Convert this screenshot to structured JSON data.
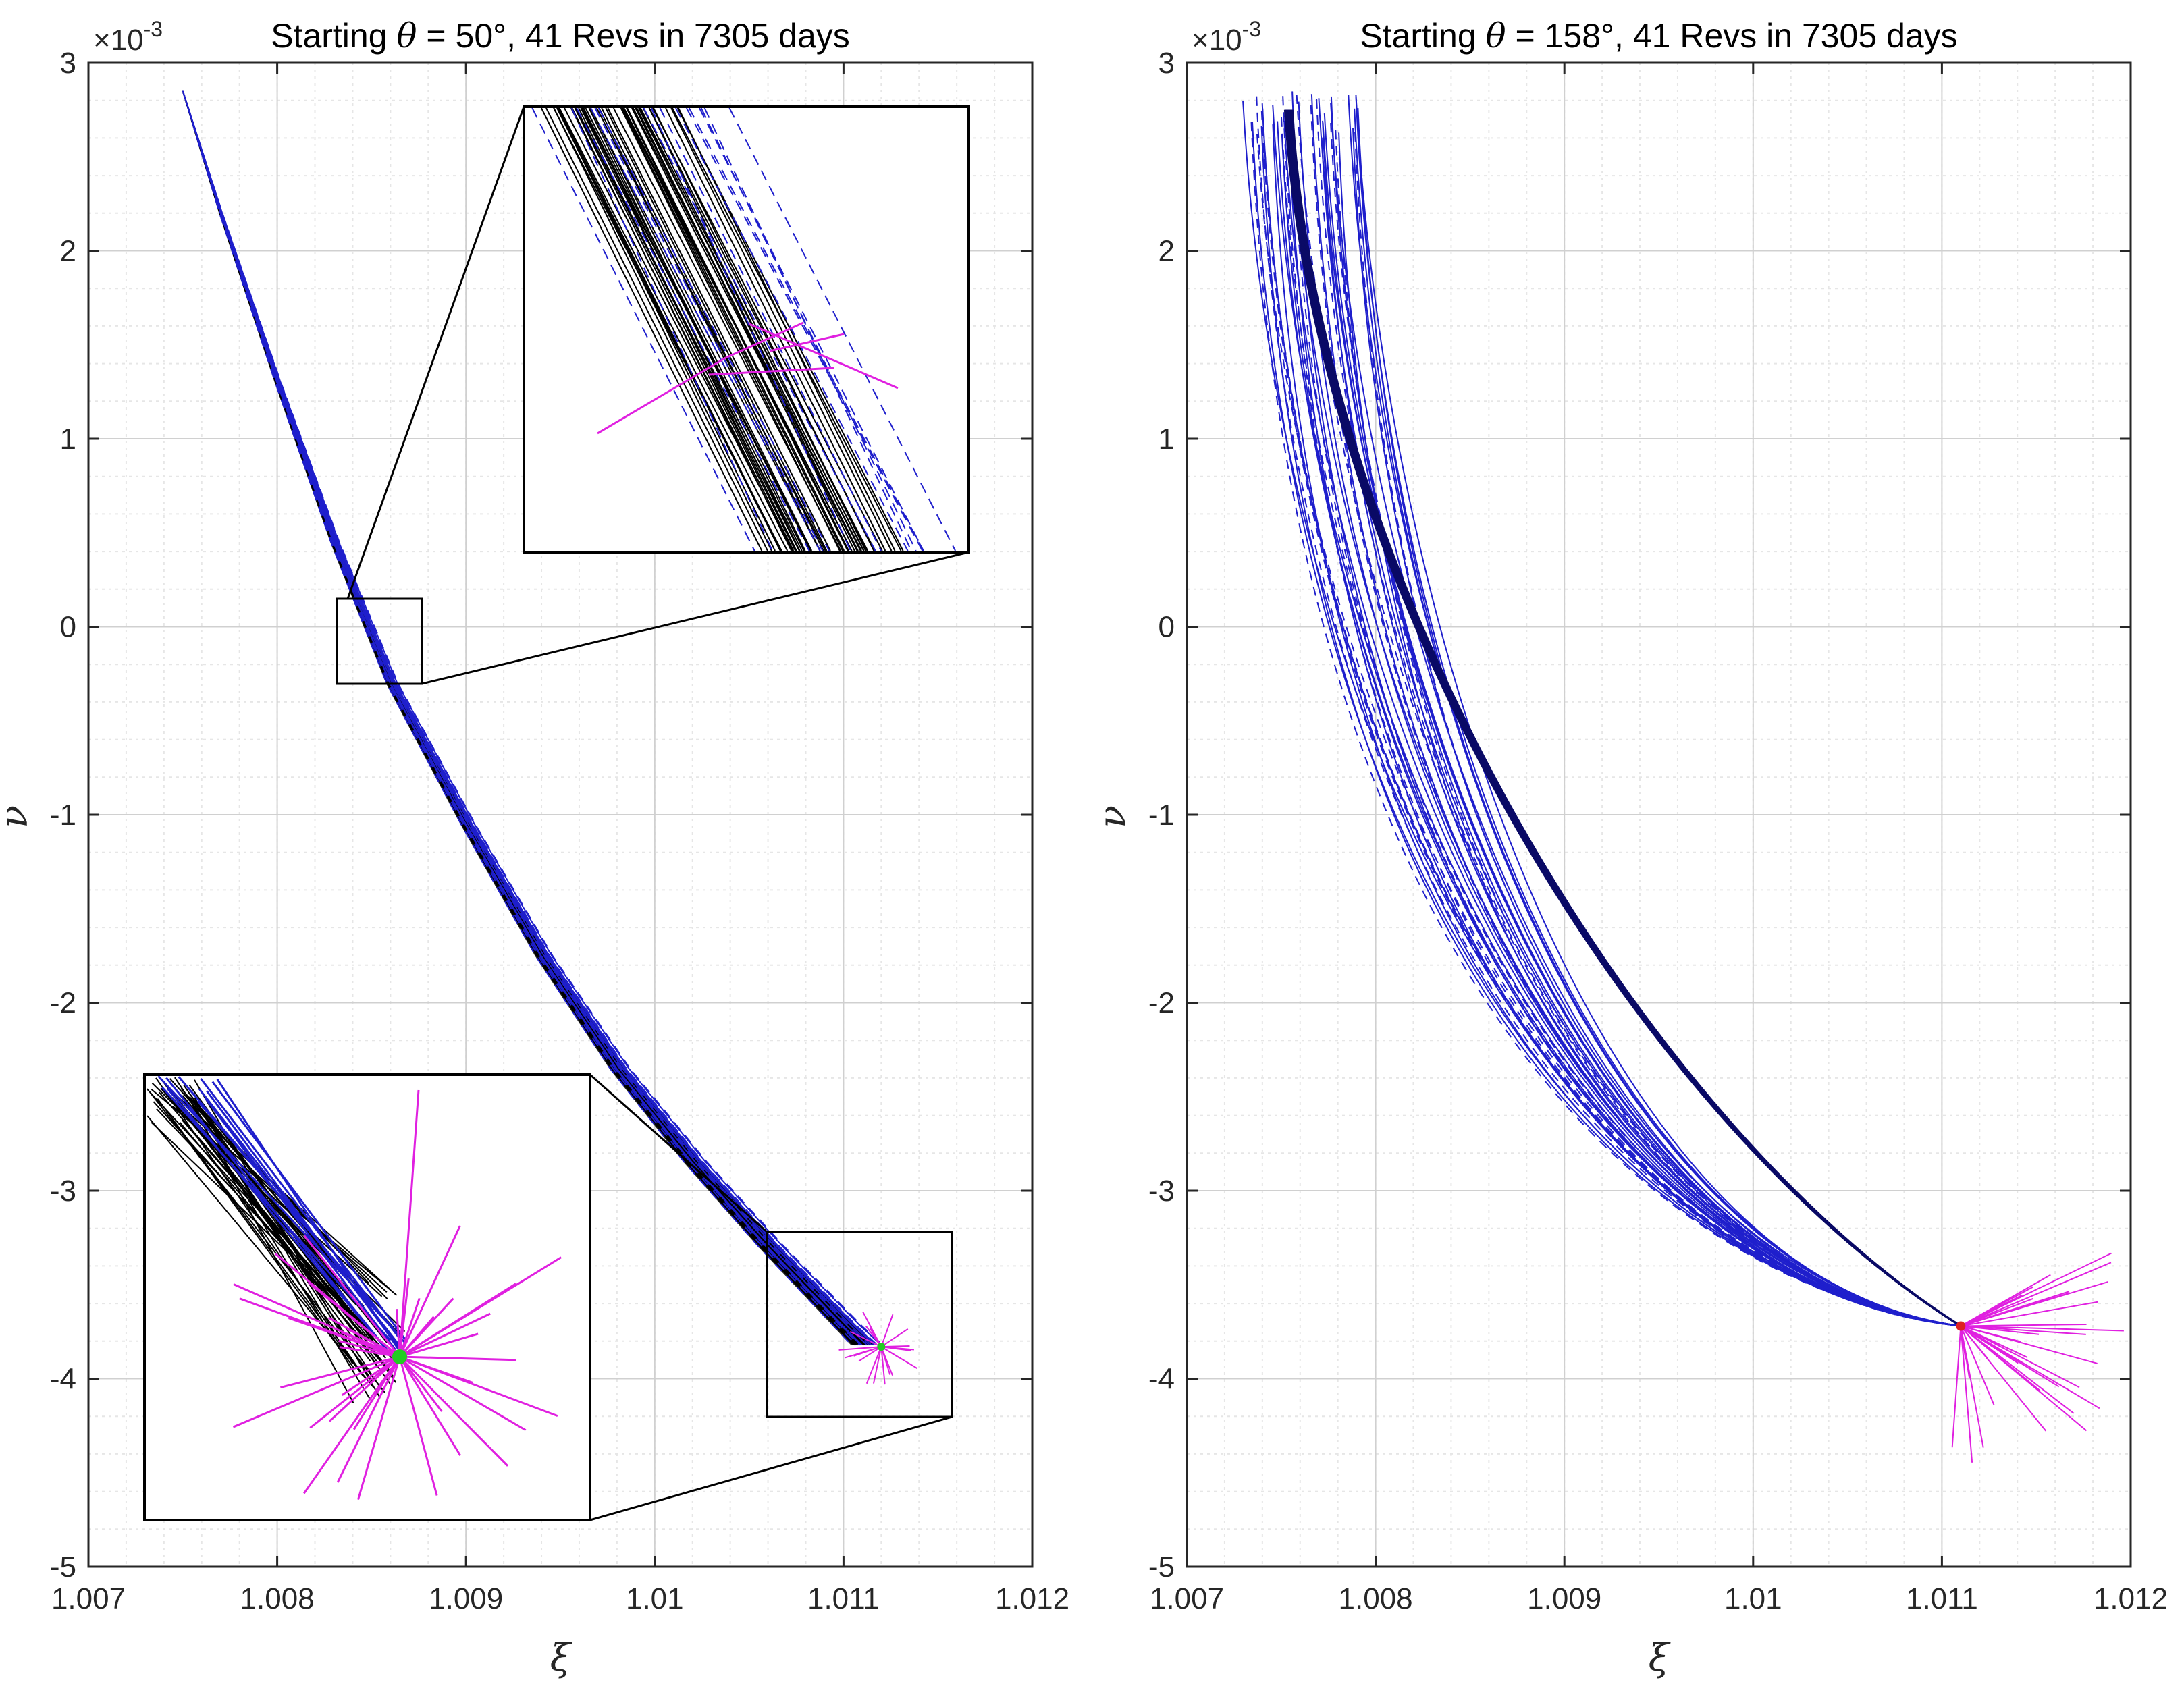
{
  "chart_data": [
    {
      "type": "line",
      "title": "Starting θ = 50°, 41 Revs in 7305 days",
      "title_parts": {
        "prefix": "Starting ",
        "symbol": "θ",
        "suffix": " = 50°, 41 Revs in 7305 days"
      },
      "xlabel": "ξ",
      "ylabel": "ν",
      "xlim": [
        1.007,
        1.012
      ],
      "ylim": [
        -5,
        3
      ],
      "y_scale_label": {
        "base": "×10",
        "exponent": "-3"
      },
      "xticks": [
        1.007,
        1.008,
        1.009,
        1.01,
        1.011,
        1.012
      ],
      "xtick_labels": [
        "1.007",
        "1.008",
        "1.009",
        "1.01",
        "1.011",
        "1.012"
      ],
      "yticks": [
        3,
        2,
        1,
        0,
        -1,
        -2,
        -3,
        -4,
        -5
      ],
      "ytick_labels": [
        "3",
        "2",
        "1",
        "0",
        "-1",
        "-2",
        "-3",
        "-4",
        "-5"
      ],
      "grid": true,
      "series": [
        {
          "name": "trajectory centerline",
          "style": "black solid band",
          "x": [
            1.0075,
            1.0077,
            1.008,
            1.0083,
            1.0086,
            1.009,
            1.0094,
            1.0098,
            1.0102,
            1.0106,
            1.011,
            1.0111
          ],
          "y": [
            2.85,
            2.2,
            1.3,
            0.45,
            -0.3,
            -1.05,
            -1.75,
            -2.35,
            -2.85,
            -3.3,
            -3.72,
            -3.82
          ]
        },
        {
          "name": "dashed blue envelope",
          "style": "blue dashed",
          "x": [
            1.0075,
            1.0085,
            1.0095,
            1.0105,
            1.0112
          ],
          "y": [
            2.8,
            -0.1,
            -1.6,
            -2.9,
            -3.8
          ]
        }
      ],
      "markers": [
        {
          "name": "end point",
          "color": "#22cc22",
          "x": 1.0112,
          "y": -3.83
        },
        {
          "name": "start point",
          "color": "#cc2222",
          "x": 1.01105,
          "y": -3.73
        }
      ],
      "insets": [
        {
          "name": "upper zoom",
          "source_xlim": [
            1.0083,
            1.00875
          ],
          "source_ylim": [
            -0.3,
            0.15
          ]
        },
        {
          "name": "lower zoom",
          "source_xlim": [
            1.0106,
            1.0116
          ],
          "source_ylim": [
            -4.2,
            -3.22
          ]
        }
      ]
    },
    {
      "type": "line",
      "title": "Starting θ = 158°, 41 Revs in 7305 days",
      "title_parts": {
        "prefix": "Starting ",
        "symbol": "θ",
        "suffix": " = 158°, 41 Revs in 7305 days"
      },
      "xlabel": "ξ",
      "ylabel": "ν",
      "xlim": [
        1.007,
        1.012
      ],
      "ylim": [
        -5,
        3
      ],
      "y_scale_label": {
        "base": "×10",
        "exponent": "-3"
      },
      "xticks": [
        1.007,
        1.008,
        1.009,
        1.01,
        1.011,
        1.012
      ],
      "xtick_labels": [
        "1.007",
        "1.008",
        "1.009",
        "1.01",
        "1.011",
        "1.012"
      ],
      "yticks": [
        3,
        2,
        1,
        0,
        -1,
        -2,
        -3,
        -4,
        -5
      ],
      "ytick_labels": [
        "3",
        "2",
        "1",
        "0",
        "-1",
        "-2",
        "-3",
        "-4",
        "-5"
      ],
      "grid": true,
      "series": [
        {
          "name": "fan of trajectories converging",
          "style": "blue solid/dashed",
          "start_x_range": [
            1.0072,
            1.0079
          ],
          "start_y_range": [
            2.6,
            2.85
          ],
          "end": {
            "x": 1.0111,
            "y": -3.72
          }
        }
      ],
      "markers": [
        {
          "name": "convergence point",
          "color": "#dd2222",
          "x": 1.0111,
          "y": -3.73
        }
      ]
    }
  ],
  "colors": {
    "black": "#000000",
    "blue": "#1f1fcc",
    "magenta": "#e020e0",
    "grid": "#dcdcdc"
  }
}
